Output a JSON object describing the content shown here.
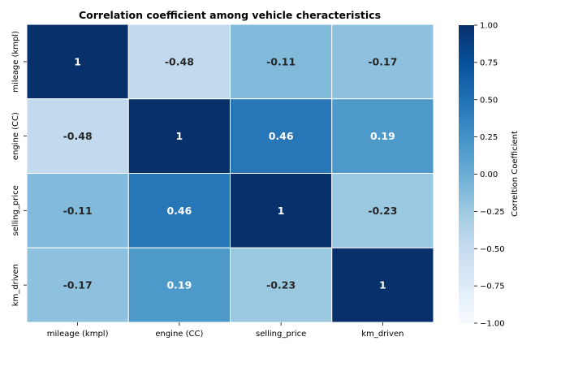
{
  "chart_data": {
    "type": "heatmap",
    "title": "Correlation coefficient among vehicle cheracteristics",
    "x_labels": [
      "mileage (kmpl)",
      "engine (CC)",
      "selling_price",
      "km_driven"
    ],
    "y_labels": [
      "mileage (kmpl)",
      "engine (CC)",
      "selling_price",
      "km_driven"
    ],
    "values": [
      [
        1,
        -0.48,
        -0.11,
        -0.17
      ],
      [
        -0.48,
        1,
        0.46,
        0.19
      ],
      [
        -0.11,
        0.46,
        1,
        -0.23
      ],
      [
        -0.17,
        0.19,
        -0.23,
        1
      ]
    ],
    "cell_labels": [
      [
        "1",
        "-0.48",
        "-0.11",
        "-0.17"
      ],
      [
        "-0.48",
        "1",
        "0.46",
        "0.19"
      ],
      [
        "-0.11",
        "0.46",
        "1",
        "-0.23"
      ],
      [
        "-0.17",
        "0.19",
        "-0.23",
        "1"
      ]
    ],
    "colorbar": {
      "label": "Correltion Coefficient",
      "vmin": -1.0,
      "vmax": 1.0,
      "ticks": [
        1.0,
        0.75,
        0.5,
        0.25,
        0.0,
        -0.25,
        -0.5,
        -0.75,
        -1.0
      ],
      "tick_labels": [
        "1.00",
        "0.75",
        "0.50",
        "0.25",
        "0.00",
        "−0.25",
        "−0.50",
        "−0.75",
        "−1.00"
      ],
      "colormap": "Blues"
    },
    "legend": "none",
    "grid": false
  }
}
